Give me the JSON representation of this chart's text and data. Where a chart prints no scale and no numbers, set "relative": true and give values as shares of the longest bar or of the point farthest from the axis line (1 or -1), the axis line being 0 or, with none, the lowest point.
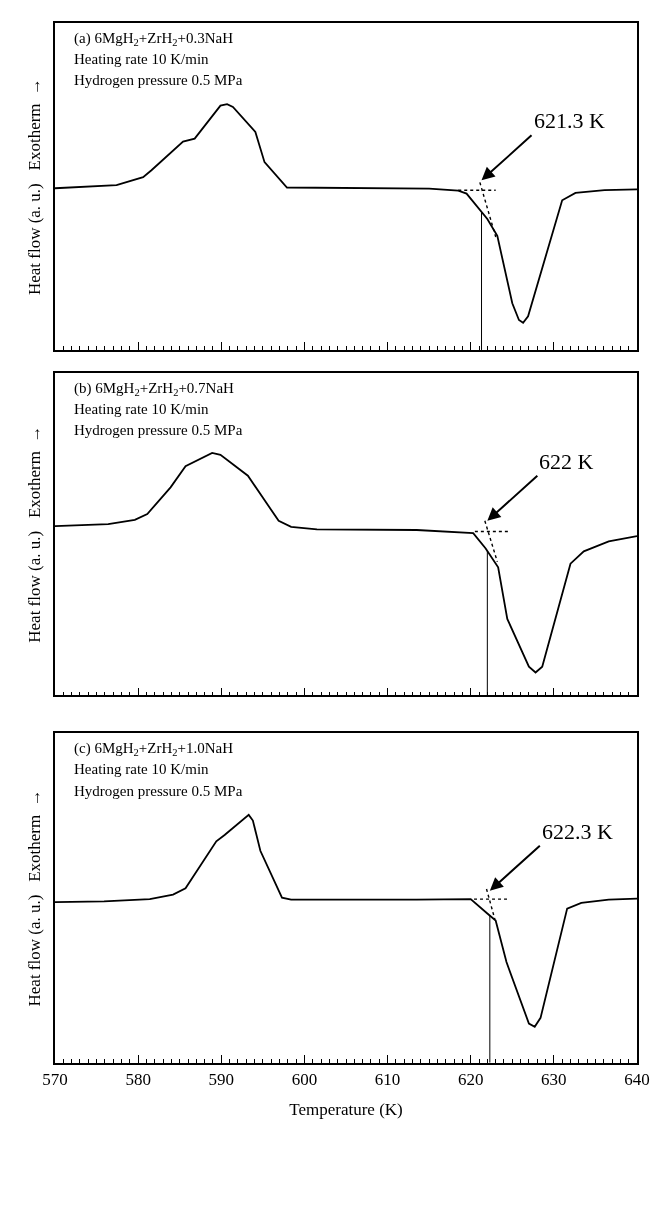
{
  "chart_data": [
    {
      "type": "line",
      "title": "(a) 6MgH$_{2}$+ZrH$_{2}$+0.3NaH",
      "ylabel": "Heat flow (a. u.)   Exotherm  →",
      "relative": true,
      "xlim": [
        570,
        640
      ],
      "xticks": [
        570,
        580,
        590,
        600,
        610,
        620,
        630,
        640
      ],
      "tick_labels": false,
      "marker": "none",
      "annotations": [
        "Heating rate 10 K/min",
        "Hydrogen pressure 0.5 MPa",
        {
          "text": "621.3 K",
          "x": 621.3,
          "y": 0.69
        }
      ],
      "ref_lines": [
        {
          "axis": "x",
          "value": 621.3,
          "color": "#000000"
        }
      ],
      "series": [
        {
          "color": "#000000",
          "line_style": "solid",
          "x": [
            570,
            577.4,
            580.6,
            581.6,
            585.4,
            586.8,
            589.9,
            590.7,
            591.4,
            594.1,
            595.2,
            597.9,
            615.0,
            618.5,
            619.5,
            622.0,
            623.2,
            625.0,
            625.8,
            626.3,
            626.9,
            631.0,
            632.6,
            636.1,
            640
          ],
          "values": [
            0.658,
            0.671,
            0.703,
            0.731,
            0.848,
            0.86,
            0.994,
            1.0,
            0.989,
            0.887,
            0.764,
            0.661,
            0.656,
            0.648,
            0.636,
            0.533,
            0.464,
            0.19,
            0.122,
            0.111,
            0.137,
            0.609,
            0.639,
            0.65,
            0.653
          ]
        },
        {
          "color": "#000000",
          "line_style": "dotted",
          "x": [
            618.5,
            623.0
          ],
          "values": [
            0.65,
            0.65
          ]
        },
        {
          "color": "#000000",
          "line_style": "dotted",
          "x": [
            621.1,
            623.1
          ],
          "values": [
            0.682,
            0.449
          ]
        }
      ]
    },
    {
      "type": "line",
      "title": "(b) 6MgH$_{2}$+ZrH$_{2}$+0.7NaH",
      "ylabel": "Heat flow (a. u.)   Exotherm  →",
      "relative": true,
      "xlim": [
        570,
        640
      ],
      "xticks": [
        570,
        580,
        590,
        600,
        610,
        620,
        630,
        640
      ],
      "tick_labels": false,
      "marker": "none",
      "annotations": [
        "Heating rate 10 K/min",
        "Hydrogen pressure 0.5 MPa",
        {
          "text": "622 K",
          "x": 622,
          "y": 0.72
        }
      ],
      "ref_lines": [
        {
          "axis": "x",
          "value": 622,
          "color": "#000000"
        }
      ],
      "series": [
        {
          "color": "#000000",
          "line_style": "solid",
          "x": [
            570,
            576.4,
            579.6,
            581.1,
            583.9,
            585.7,
            588.9,
            589.9,
            593.2,
            596.9,
            598.4,
            601.5,
            613.5,
            620.3,
            621.8,
            623.3,
            624.4,
            627.0,
            627.8,
            628.6,
            632.0,
            633.6,
            636.6,
            640
          ],
          "values": [
            0.698,
            0.706,
            0.724,
            0.748,
            0.858,
            0.945,
            1.0,
            0.992,
            0.906,
            0.72,
            0.695,
            0.685,
            0.682,
            0.669,
            0.606,
            0.528,
            0.315,
            0.118,
            0.094,
            0.118,
            0.543,
            0.594,
            0.635,
            0.657
          ]
        },
        {
          "color": "#000000",
          "line_style": "dotted",
          "x": [
            620.5,
            624.6
          ],
          "values": [
            0.676,
            0.676
          ]
        },
        {
          "color": "#000000",
          "line_style": "dotted",
          "x": [
            621.7,
            623.2
          ],
          "values": [
            0.72,
            0.551
          ]
        }
      ]
    },
    {
      "type": "line",
      "title": "(c) 6MgH$_{2}$+ZrH$_{2}$+1.0NaH",
      "xlabel": "Temperature (K)",
      "ylabel": "Heat flow (a. u.)   Exotherm  →",
      "relative": true,
      "xlim": [
        570,
        640
      ],
      "xticks": [
        570,
        580,
        590,
        600,
        610,
        620,
        630,
        640
      ],
      "tick_labels": "x",
      "marker": "none",
      "annotations": [
        "Heating rate 10 K/min",
        "Hydrogen pressure 0.5 MPa",
        {
          "text": "622.3 K",
          "x": 622.3,
          "y": 0.694
        }
      ],
      "ref_lines": [
        {
          "axis": "x",
          "value": 622.3,
          "color": "#000000"
        }
      ],
      "series": [
        {
          "color": "#000000",
          "line_style": "solid",
          "x": [
            570,
            575.9,
            581.4,
            584.2,
            585.7,
            589.4,
            590.4,
            593.3,
            593.8,
            594.7,
            597.3,
            598.4,
            613.5,
            620.0,
            622.0,
            623.0,
            624.3,
            627.0,
            627.7,
            628.4,
            631.6,
            633.3,
            636.6,
            640
          ],
          "values": [
            0.648,
            0.651,
            0.66,
            0.678,
            0.704,
            0.893,
            0.919,
            1.0,
            0.977,
            0.855,
            0.666,
            0.658,
            0.658,
            0.66,
            0.602,
            0.574,
            0.406,
            0.158,
            0.145,
            0.181,
            0.622,
            0.645,
            0.658,
            0.662
          ]
        },
        {
          "color": "#000000",
          "line_style": "dotted",
          "x": [
            620.4,
            624.4
          ],
          "values": [
            0.66,
            0.66
          ]
        },
        {
          "color": "#000000",
          "line_style": "dotted",
          "x": [
            621.9,
            622.9
          ],
          "values": [
            0.701,
            0.579
          ]
        }
      ]
    }
  ]
}
